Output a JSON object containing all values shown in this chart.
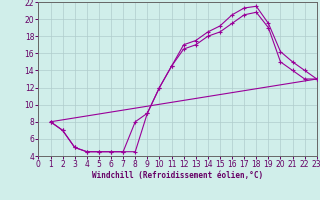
{
  "bg_color": "#d0eeea",
  "grid_color": "#b0cccc",
  "line_color": "#990099",
  "xlabel": "Windchill (Refroidissement éolien,°C)",
  "xlim": [
    0,
    23
  ],
  "ylim": [
    4,
    22
  ],
  "xticks": [
    0,
    1,
    2,
    3,
    4,
    5,
    6,
    7,
    8,
    9,
    10,
    11,
    12,
    13,
    14,
    15,
    16,
    17,
    18,
    19,
    20,
    21,
    22,
    23
  ],
  "yticks": [
    4,
    6,
    8,
    10,
    12,
    14,
    16,
    18,
    20,
    22
  ],
  "line1_x": [
    1,
    2,
    3,
    4,
    5,
    6,
    7,
    8,
    9,
    10,
    11,
    12,
    13,
    14,
    15,
    16,
    17,
    18,
    19,
    20,
    21,
    22,
    23
  ],
  "line1_y": [
    8,
    7,
    5,
    4.5,
    4.5,
    4.5,
    4.5,
    4.5,
    9,
    12,
    14.5,
    17,
    17.5,
    18.5,
    19.2,
    20.5,
    21.3,
    21.5,
    19.5,
    16.2,
    15,
    14,
    13
  ],
  "line2_x": [
    1,
    2,
    3,
    4,
    5,
    6,
    7,
    8,
    9,
    10,
    11,
    12,
    13,
    14,
    15,
    16,
    17,
    18,
    19,
    20,
    21,
    22,
    23
  ],
  "line2_y": [
    8,
    7,
    5,
    4.5,
    4.5,
    4.5,
    4.5,
    8,
    9,
    12,
    14.5,
    16.5,
    17,
    18,
    18.5,
    19.5,
    20.5,
    20.8,
    19,
    15,
    14,
    13,
    13
  ],
  "line3_x": [
    1,
    23
  ],
  "line3_y": [
    8,
    13
  ]
}
